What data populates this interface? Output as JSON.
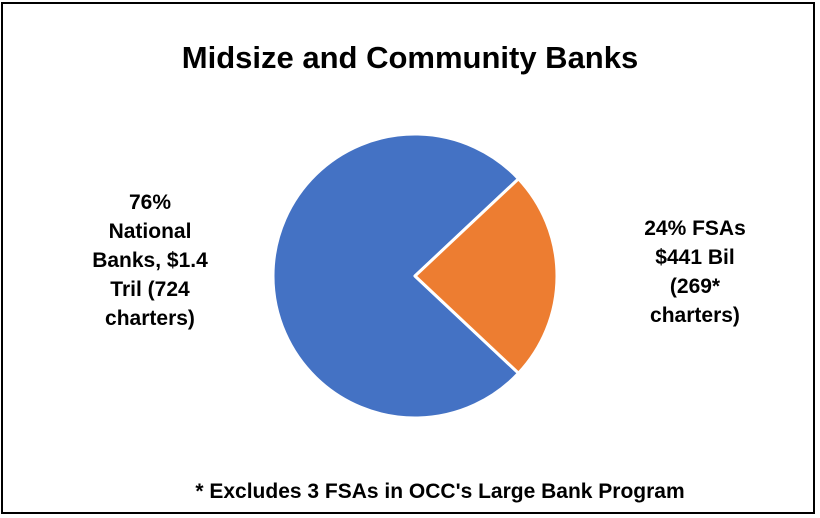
{
  "chart_data": {
    "type": "pie",
    "title": "Midsize and Community Banks",
    "slices": [
      {
        "label": "76% National Banks, $1.4 Tril (724 charters)",
        "value": 76,
        "color": "#4472C4"
      },
      {
        "label": "24% FSAs $441 Bil (269* charters)",
        "value": 24,
        "color": "#ED7D31"
      }
    ],
    "footnote": "* Excludes 3 FSAs in OCC's Large Bank Program"
  },
  "labels": {
    "left": "76%\nNational\nBanks, $1.4\nTril (724\ncharters)",
    "right": "24% FSAs\n$441 Bil\n(269*\ncharters)"
  }
}
